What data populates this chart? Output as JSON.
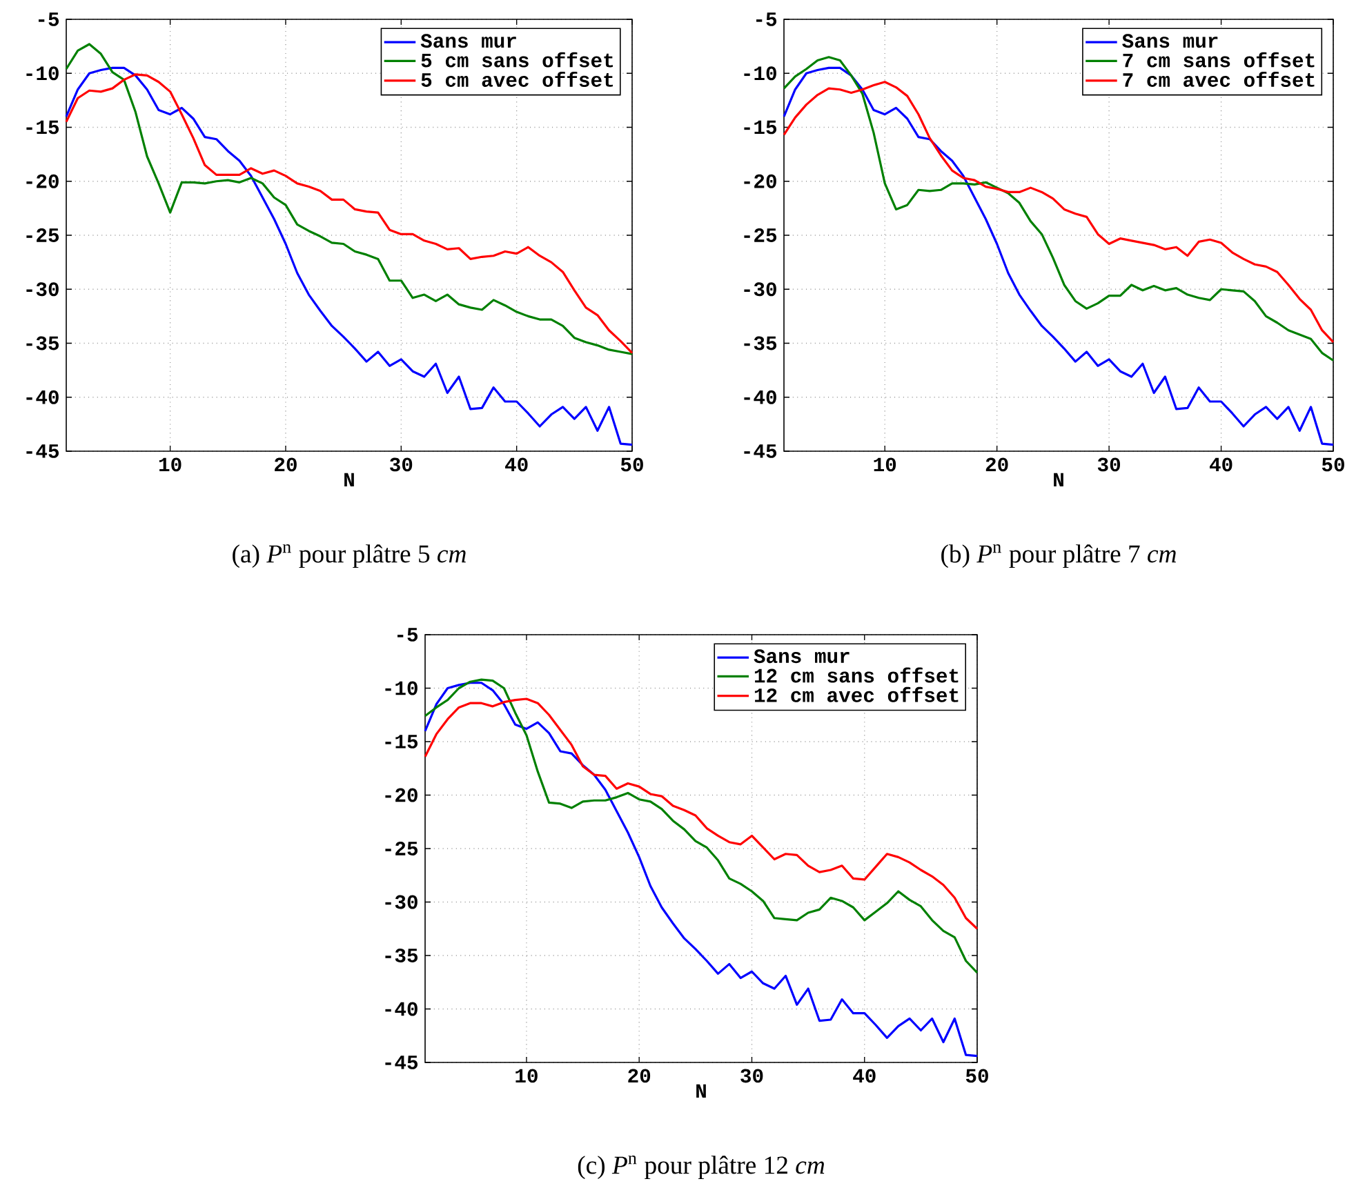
{
  "chart_data": [
    {
      "type": "line",
      "xlabel": "N",
      "x": [
        1,
        2,
        3,
        4,
        5,
        6,
        7,
        8,
        9,
        10,
        11,
        12,
        13,
        14,
        15,
        16,
        17,
        18,
        19,
        20,
        21,
        22,
        23,
        24,
        25,
        26,
        27,
        28,
        29,
        30,
        31,
        32,
        33,
        34,
        35,
        36,
        37,
        38,
        39,
        40,
        41,
        42,
        43,
        44,
        45,
        46,
        47,
        48,
        49,
        50
      ],
      "xlim": [
        1,
        50
      ],
      "xticks": [
        10,
        20,
        30,
        40,
        50
      ],
      "ylim": [
        -45,
        -5
      ],
      "yticks": [
        -45,
        -40,
        -35,
        -30,
        -25,
        -20,
        -15,
        -10,
        -5
      ],
      "grid": true,
      "legend": "top right",
      "annotations": [
        "(a) *P*$^{n}$ pour plâtre 5 *cm*"
      ],
      "series": [
        {
          "name": "Sans mur",
          "color": "#0000ff",
          "values": [
            -14,
            -11.5,
            -10,
            -9.7,
            -9.5,
            -9.5,
            -10.2,
            -11.5,
            -13.4,
            -13.8,
            -13.2,
            -14.2,
            -15.9,
            -16.1,
            -17.2,
            -18.1,
            -19.5,
            -21.5,
            -23.5,
            -25.8,
            -28.5,
            -30.5,
            -32,
            -33.4,
            -34.4,
            -35.5,
            -36.7,
            -35.8,
            -37.1,
            -36.5,
            -37.6,
            -38.1,
            -36.9,
            -39.6,
            -38.1,
            -41.1,
            -41,
            -39.1,
            -40.4,
            -40.4,
            -41.5,
            -42.7,
            -41.6,
            -40.9,
            -42,
            -40.9,
            -43.1,
            -40.9,
            -44.3,
            -44.4
          ]
        },
        {
          "name": "5 cm sans offset",
          "color": "#008000",
          "values": [
            -9.6,
            -7.9,
            -7.3,
            -8.2,
            -9.9,
            -10.6,
            -13.6,
            -17.7,
            -20.2,
            -22.9,
            -20.1,
            -20.1,
            -20.2,
            -20,
            -19.9,
            -20.1,
            -19.7,
            -20.2,
            -21.5,
            -22.2,
            -24,
            -24.6,
            -25.1,
            -25.7,
            -25.8,
            -26.5,
            -26.8,
            -27.2,
            -29.2,
            -29.2,
            -30.8,
            -30.5,
            -31.1,
            -30.5,
            -31.4,
            -31.7,
            -31.9,
            -31,
            -31.5,
            -32.1,
            -32.5,
            -32.8,
            -32.8,
            -33.4,
            -34.5,
            -34.9,
            -35.2,
            -35.6,
            -35.8,
            -36
          ]
        },
        {
          "name": "5 cm avec offset",
          "color": "#ff0000",
          "values": [
            -14.5,
            -12.3,
            -11.6,
            -11.7,
            -11.4,
            -10.6,
            -10.1,
            -10.2,
            -10.8,
            -11.7,
            -13.8,
            -16,
            -18.5,
            -19.4,
            -19.4,
            -19.4,
            -18.8,
            -19.3,
            -19,
            -19.5,
            -20.2,
            -20.5,
            -20.9,
            -21.7,
            -21.7,
            -22.6,
            -22.8,
            -22.9,
            -24.5,
            -24.9,
            -24.9,
            -25.5,
            -25.8,
            -26.3,
            -26.2,
            -27.2,
            -27,
            -26.9,
            -26.5,
            -26.7,
            -26.1,
            -26.9,
            -27.5,
            -28.4,
            -30.1,
            -31.7,
            -32.4,
            -33.8,
            -34.8,
            -35.9
          ]
        }
      ]
    },
    {
      "type": "line",
      "xlabel": "N",
      "x": [
        1,
        2,
        3,
        4,
        5,
        6,
        7,
        8,
        9,
        10,
        11,
        12,
        13,
        14,
        15,
        16,
        17,
        18,
        19,
        20,
        21,
        22,
        23,
        24,
        25,
        26,
        27,
        28,
        29,
        30,
        31,
        32,
        33,
        34,
        35,
        36,
        37,
        38,
        39,
        40,
        41,
        42,
        43,
        44,
        45,
        46,
        47,
        48,
        49,
        50
      ],
      "xlim": [
        1,
        50
      ],
      "xticks": [
        10,
        20,
        30,
        40,
        50
      ],
      "ylim": [
        -45,
        -5
      ],
      "yticks": [
        -45,
        -40,
        -35,
        -30,
        -25,
        -20,
        -15,
        -10,
        -5
      ],
      "grid": true,
      "legend": "top right",
      "annotations": [
        "(b) *P*$^{n}$ pour plâtre 7 *cm*"
      ],
      "series": [
        {
          "name": "Sans mur",
          "color": "#0000ff",
          "values": [
            -14,
            -11.5,
            -10,
            -9.7,
            -9.5,
            -9.5,
            -10.2,
            -11.5,
            -13.4,
            -13.8,
            -13.2,
            -14.2,
            -15.9,
            -16.1,
            -17.2,
            -18.1,
            -19.5,
            -21.5,
            -23.5,
            -25.8,
            -28.5,
            -30.5,
            -32,
            -33.4,
            -34.4,
            -35.5,
            -36.7,
            -35.8,
            -37.1,
            -36.5,
            -37.6,
            -38.1,
            -36.9,
            -39.6,
            -38.1,
            -41.1,
            -41,
            -39.1,
            -40.4,
            -40.4,
            -41.5,
            -42.7,
            -41.6,
            -40.9,
            -42,
            -40.9,
            -43.1,
            -40.9,
            -44.3,
            -44.4
          ]
        },
        {
          "name": "7 cm sans offset",
          "color": "#008000",
          "values": [
            -11.4,
            -10.3,
            -9.6,
            -8.8,
            -8.5,
            -8.8,
            -10.2,
            -11.9,
            -15.5,
            -20.2,
            -22.6,
            -22.2,
            -20.8,
            -20.9,
            -20.8,
            -20.2,
            -20.2,
            -20.3,
            -20.1,
            -20.6,
            -21.1,
            -22,
            -23.7,
            -24.9,
            -27.1,
            -29.6,
            -31.1,
            -31.8,
            -31.3,
            -30.6,
            -30.6,
            -29.6,
            -30.1,
            -29.7,
            -30.1,
            -29.9,
            -30.5,
            -30.8,
            -31,
            -30,
            -30.1,
            -30.2,
            -31.1,
            -32.5,
            -33.1,
            -33.8,
            -34.2,
            -34.6,
            -35.9,
            -36.6
          ]
        },
        {
          "name": "7 cm avec offset",
          "color": "#ff0000",
          "values": [
            -15.7,
            -14.1,
            -12.9,
            -12,
            -11.4,
            -11.5,
            -11.8,
            -11.5,
            -11.1,
            -10.8,
            -11.3,
            -12.1,
            -13.8,
            -16,
            -17.6,
            -19,
            -19.7,
            -19.9,
            -20.5,
            -20.7,
            -21,
            -21,
            -20.6,
            -21,
            -21.6,
            -22.6,
            -23,
            -23.3,
            -24.9,
            -25.8,
            -25.3,
            -25.5,
            -25.7,
            -25.9,
            -26.3,
            -26.1,
            -26.9,
            -25.6,
            -25.4,
            -25.7,
            -26.6,
            -27.2,
            -27.7,
            -27.9,
            -28.4,
            -29.6,
            -30.9,
            -31.9,
            -33.8,
            -34.9
          ]
        }
      ]
    },
    {
      "type": "line",
      "xlabel": "N",
      "x": [
        1,
        2,
        3,
        4,
        5,
        6,
        7,
        8,
        9,
        10,
        11,
        12,
        13,
        14,
        15,
        16,
        17,
        18,
        19,
        20,
        21,
        22,
        23,
        24,
        25,
        26,
        27,
        28,
        29,
        30,
        31,
        32,
        33,
        34,
        35,
        36,
        37,
        38,
        39,
        40,
        41,
        42,
        43,
        44,
        45,
        46,
        47,
        48,
        49,
        50
      ],
      "xlim": [
        1,
        50
      ],
      "xticks": [
        10,
        20,
        30,
        40,
        50
      ],
      "ylim": [
        -45,
        -5
      ],
      "yticks": [
        -45,
        -40,
        -35,
        -30,
        -25,
        -20,
        -15,
        -10,
        -5
      ],
      "grid": true,
      "legend": "top right",
      "annotations": [
        "(c) *P*$^{n}$ pour plâtre 12 *cm*"
      ],
      "series": [
        {
          "name": "Sans mur",
          "color": "#0000ff",
          "values": [
            -14,
            -11.5,
            -10,
            -9.7,
            -9.5,
            -9.5,
            -10.2,
            -11.5,
            -13.4,
            -13.8,
            -13.2,
            -14.2,
            -15.9,
            -16.1,
            -17.2,
            -18.1,
            -19.5,
            -21.5,
            -23.5,
            -25.8,
            -28.5,
            -30.5,
            -32,
            -33.4,
            -34.4,
            -35.5,
            -36.7,
            -35.8,
            -37.1,
            -36.5,
            -37.6,
            -38.1,
            -36.9,
            -39.6,
            -38.1,
            -41.1,
            -41,
            -39.1,
            -40.4,
            -40.4,
            -41.5,
            -42.7,
            -41.6,
            -40.9,
            -42,
            -40.9,
            -43.1,
            -40.9,
            -44.3,
            -44.4
          ]
        },
        {
          "name": "12 cm sans offset",
          "color": "#008000",
          "values": [
            -12.6,
            -11.8,
            -11.1,
            -10,
            -9.4,
            -9.2,
            -9.3,
            -10,
            -12.3,
            -14.4,
            -17.8,
            -20.7,
            -20.8,
            -21.2,
            -20.6,
            -20.5,
            -20.5,
            -20.2,
            -19.8,
            -20.4,
            -20.6,
            -21.3,
            -22.4,
            -23.2,
            -24.3,
            -24.9,
            -26.1,
            -27.8,
            -28.3,
            -29,
            -29.9,
            -31.5,
            -31.6,
            -31.7,
            -31,
            -30.7,
            -29.6,
            -29.9,
            -30.5,
            -31.7,
            -30.9,
            -30.1,
            -29,
            -29.8,
            -30.4,
            -31.7,
            -32.7,
            -33.3,
            -35.5,
            -36.6
          ]
        },
        {
          "name": "12 cm avec offset",
          "color": "#ff0000",
          "values": [
            -16.4,
            -14.3,
            -12.9,
            -11.8,
            -11.4,
            -11.4,
            -11.7,
            -11.3,
            -11.1,
            -11,
            -11.4,
            -12.5,
            -13.9,
            -15.3,
            -17.3,
            -18.1,
            -18.2,
            -19.4,
            -18.9,
            -19.2,
            -19.9,
            -20.1,
            -21,
            -21.4,
            -21.9,
            -23.1,
            -23.8,
            -24.4,
            -24.6,
            -23.8,
            -24.9,
            -26,
            -25.5,
            -25.6,
            -26.6,
            -27.2,
            -27,
            -26.6,
            -27.8,
            -27.9,
            -26.7,
            -25.5,
            -25.8,
            -26.3,
            -27,
            -27.6,
            -28.4,
            -29.6,
            -31.5,
            -32.5
          ]
        }
      ]
    }
  ]
}
